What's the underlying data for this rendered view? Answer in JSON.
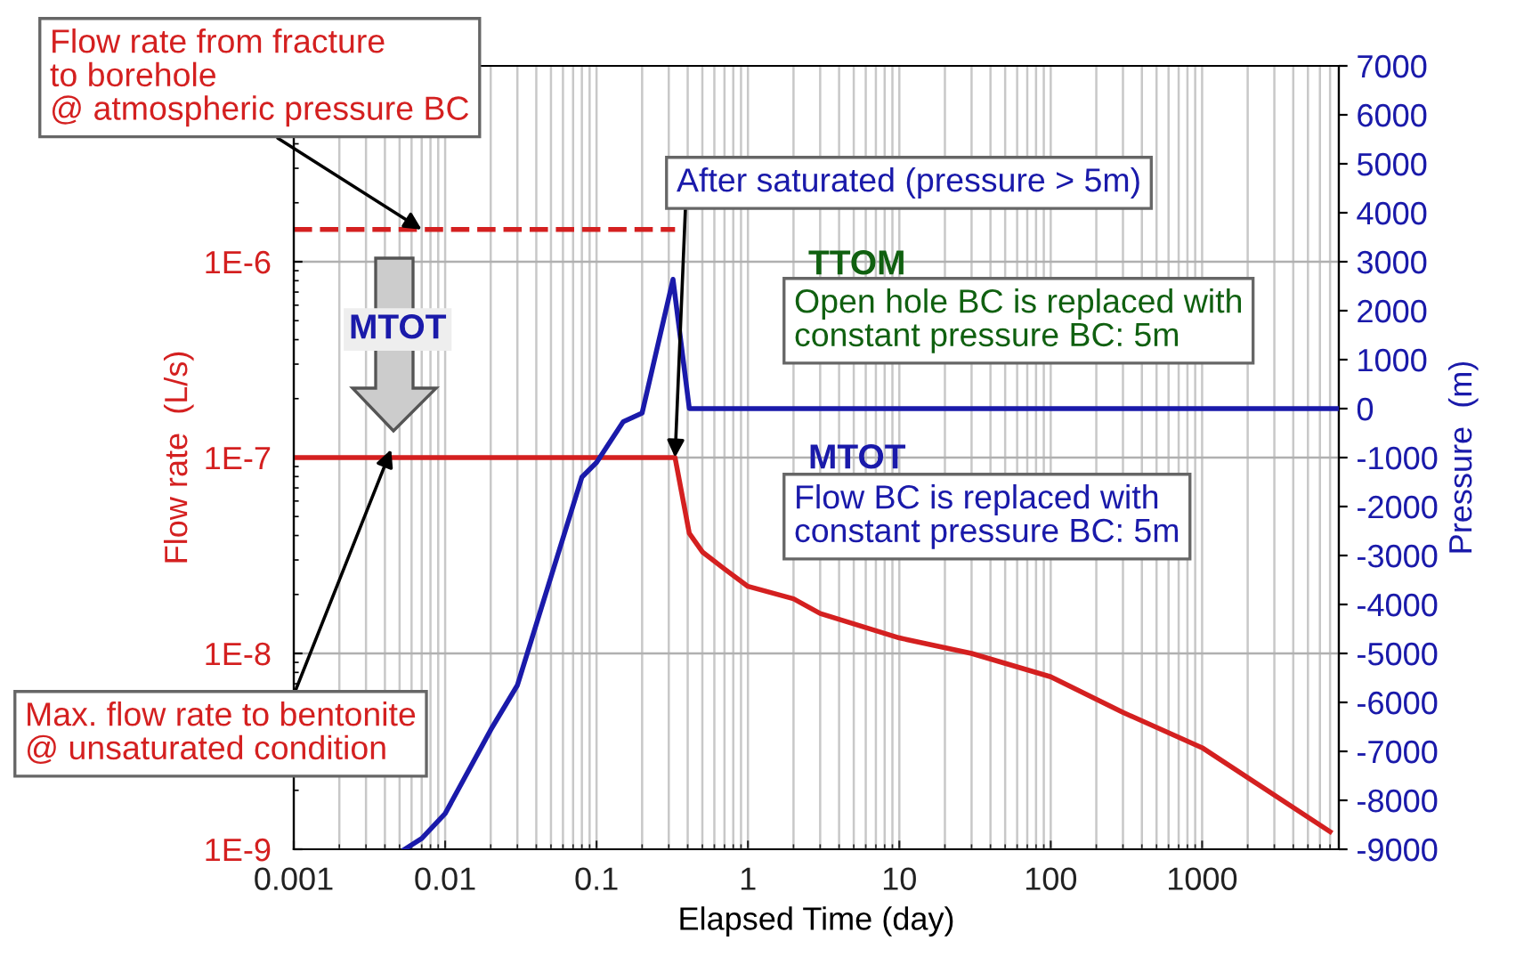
{
  "chart_data": {
    "type": "line",
    "xlabel": "Elapsed Time (day)",
    "ylabel": "Flow rate  (L/s)",
    "y2label": "Pressure  (m)",
    "log": "xy",
    "grid": true,
    "xlim": [
      0.001,
      8000
    ],
    "xticks": [
      0.001,
      0.01,
      0.1,
      1,
      10,
      100,
      1000
    ],
    "ylim": [
      1e-09,
      1e-05
    ],
    "yticks": [
      {
        "value": 1e-09,
        "label": "1E-9"
      },
      {
        "value": 1e-08,
        "label": "1E-8"
      },
      {
        "value": 1e-07,
        "label": "1E-7"
      },
      {
        "value": 1e-06,
        "label": "1E-6"
      }
    ],
    "y2lim": [
      -9000,
      7000
    ],
    "y2ticks": [
      -9000,
      -8000,
      -7000,
      -6000,
      -5000,
      -4000,
      -3000,
      -2000,
      -1000,
      0,
      1000,
      2000,
      3000,
      4000,
      5000,
      6000,
      7000
    ],
    "series": [
      {
        "color": "#d42020",
        "line_style": "dashed",
        "x": [
          0.001,
          0.33
        ],
        "values": [
          1.46e-06,
          1.46e-06
        ]
      },
      {
        "color": "#d42020",
        "line_style": "solid",
        "x": [
          0.001,
          0.33,
          0.41,
          0.5,
          0.7,
          1,
          2,
          3,
          10,
          30,
          100,
          300,
          1000,
          7000
        ],
        "values": [
          1e-07,
          1e-07,
          4.1e-08,
          3.3e-08,
          2.7e-08,
          2.2e-08,
          1.9e-08,
          1.6e-08,
          1.2e-08,
          1e-08,
          7.6e-09,
          5e-09,
          3.3e-09,
          1.23e-09
        ]
      },
      {
        "color": "#1a1aaa",
        "line_style": "solid",
        "axis": "y2",
        "x": [
          0.0054,
          0.007,
          0.01,
          0.02,
          0.03,
          0.08,
          0.1,
          0.15,
          0.2,
          0.32,
          0.41,
          8000
        ],
        "values": [
          -9000,
          -8780,
          -8270,
          -6560,
          -5650,
          -1400,
          -1100,
          -270,
          -90,
          2640,
          0,
          0
        ]
      }
    ],
    "annotations": [
      {
        "text": "Flow rate from fracture\nto borehole\n@ atmospheric pressure BC",
        "x": 0.007,
        "y": 1.46e-06
      },
      {
        "text": "After saturated (pressure > 5m)",
        "x": 0.33,
        "y": 1e-07
      },
      "TTOM",
      "Open hole BC is replaced with\nconstant pressure BC: 5m",
      "MTOT",
      "Flow BC is replaced with\nconstant pressure BC: 5m",
      "MTOT",
      {
        "text": "Max. flow rate to bentonite\n@ unsaturated condition",
        "x": 0.0044,
        "y": 1.1e-07
      }
    ]
  }
}
